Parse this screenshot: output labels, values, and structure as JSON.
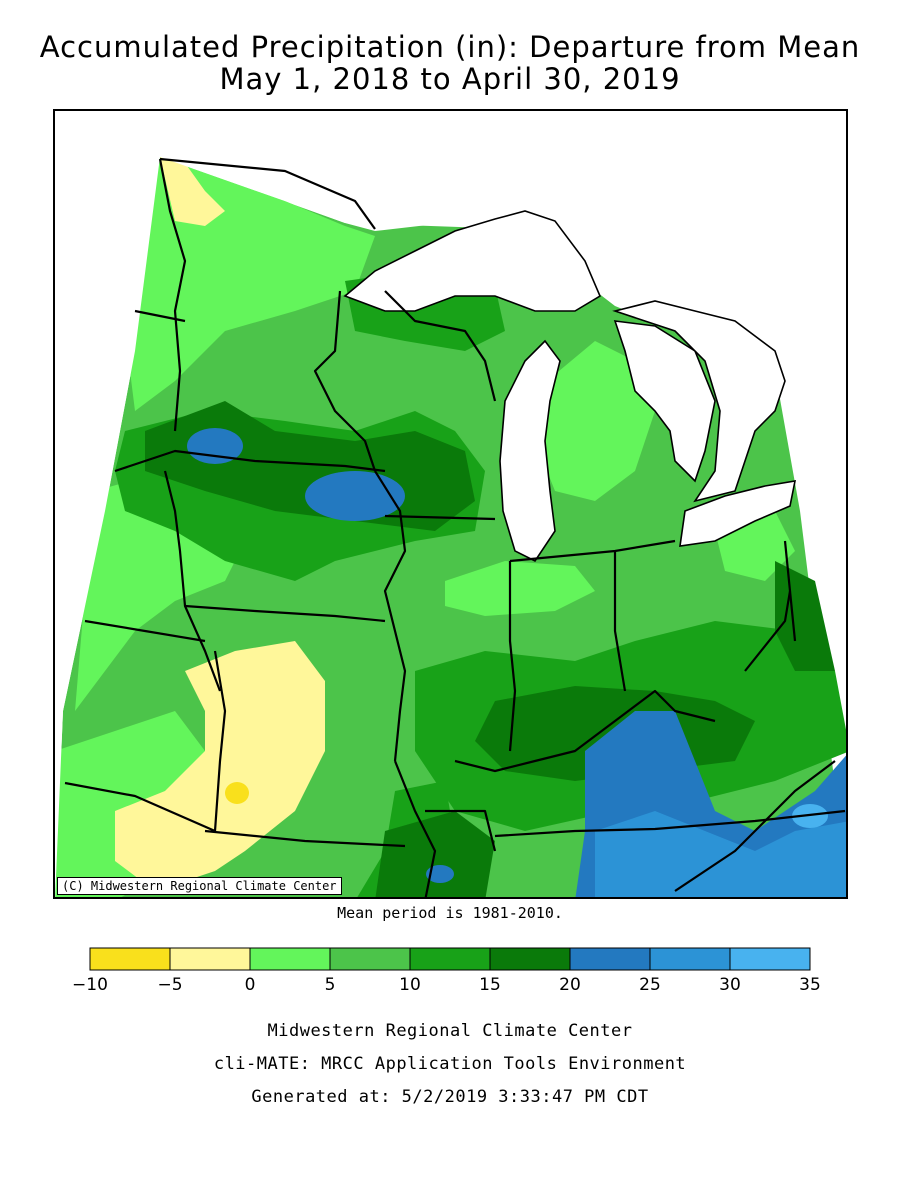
{
  "header": {
    "title_line1": "Accumulated Precipitation (in): Departure from Mean",
    "title_line2": "May 1, 2018 to April 30, 2019"
  },
  "map": {
    "copyright": "(C) Midwestern Regional Climate Center",
    "water_color": "#ffffff",
    "border_color": "#000000"
  },
  "mean_period": "Mean period is 1981-2010.",
  "legend": {
    "ticks": [
      "-10",
      "-5",
      "0",
      "5",
      "10",
      "15",
      "20",
      "25",
      "30",
      "35"
    ],
    "colors": [
      "#f9e01c",
      "#fff79a",
      "#63f55b",
      "#4cc44a",
      "#18a218",
      "#0a7a0a",
      "#2379c0",
      "#2c93d6",
      "#48b2ef"
    ],
    "unit": "in"
  },
  "footer": {
    "line1": "Midwestern Regional Climate Center",
    "line2": "cli-MATE: MRCC Application Tools Environment",
    "line3": "Generated at: 5/2/2019 3:33:47 PM CDT"
  }
}
